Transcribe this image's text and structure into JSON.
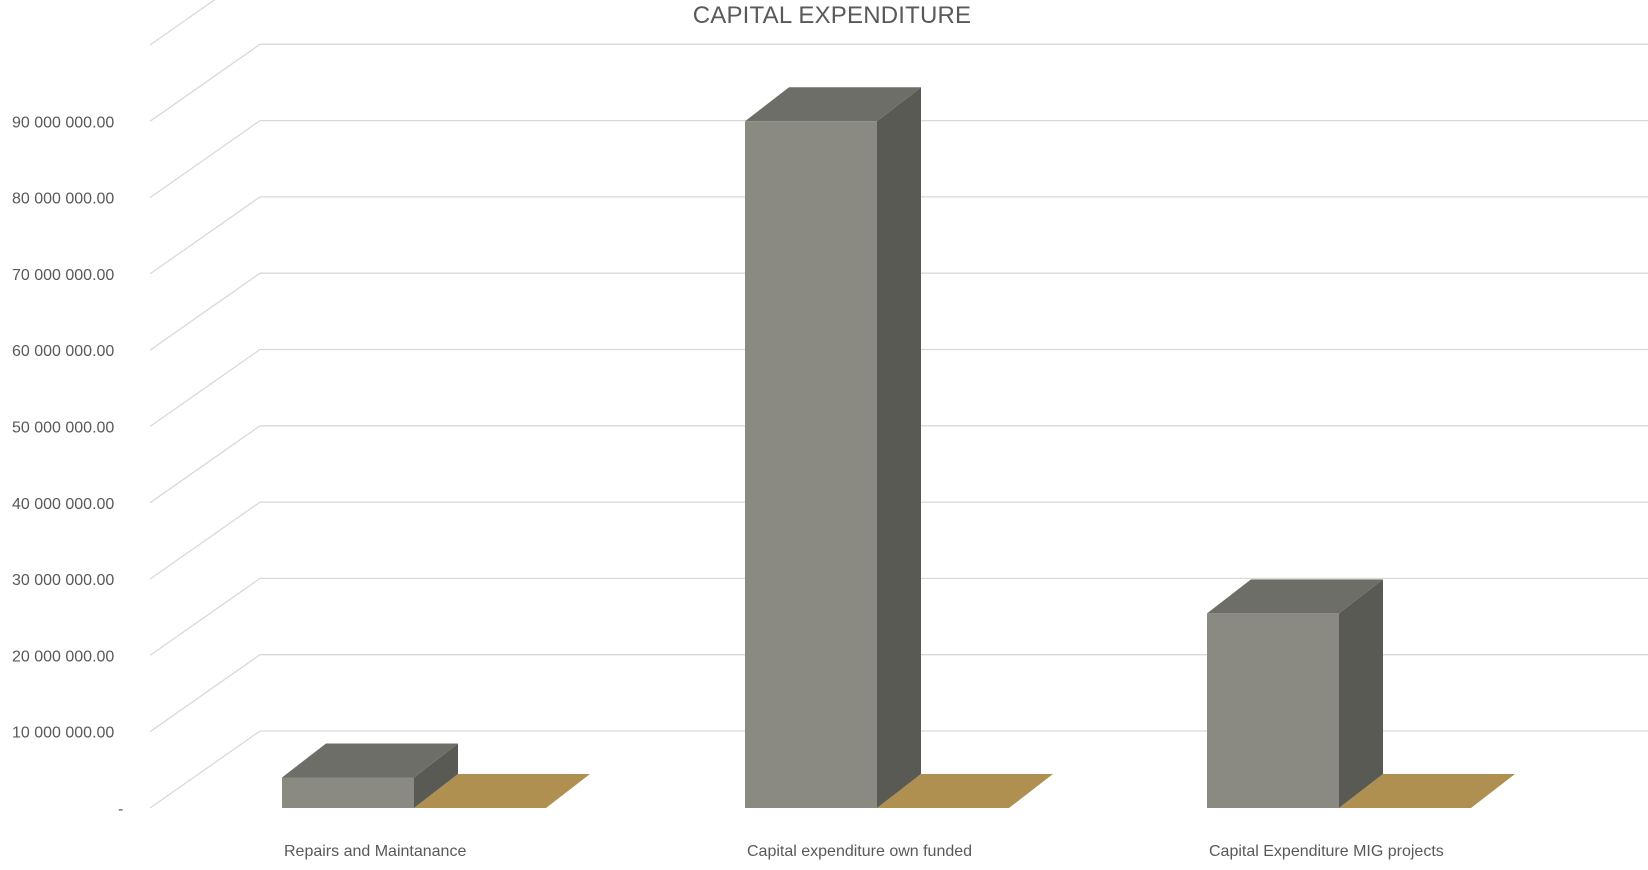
{
  "chart_data": {
    "type": "bar",
    "title": "CAPITAL EXPENDITURE",
    "xlabel": "",
    "ylabel": "",
    "categories": [
      "Repairs and Maintanance",
      "Capital expenditure own funded",
      "Capital Expenditure MIG projects"
    ],
    "series": [
      {
        "values": [
          4000000,
          90000000,
          25500000
        ]
      },
      {
        "values": [
          0,
          0,
          0
        ]
      }
    ],
    "ylim": [
      0,
      100000000
    ],
    "yticks": [
      0,
      10000000,
      20000000,
      30000000,
      40000000,
      50000000,
      60000000,
      70000000,
      80000000,
      90000000
    ],
    "ytick_labels": [
      "-",
      "10 000 000.00",
      "20 000 000.00",
      "30 000 000.00",
      "40 000 000.00",
      "50 000 000.00",
      "60 000 000.00",
      "70 000 000.00",
      "80 000 000.00",
      "90 000 000.00"
    ],
    "style": "3d-column",
    "grid": true,
    "legend": "none",
    "colors": {
      "series1_front": "#8a8a83",
      "series1_side": "#5a5a55",
      "series1_top": "#6e6e68",
      "series2_top": "#b09050",
      "grid": "#d9d9d9",
      "text": "#595959"
    }
  }
}
